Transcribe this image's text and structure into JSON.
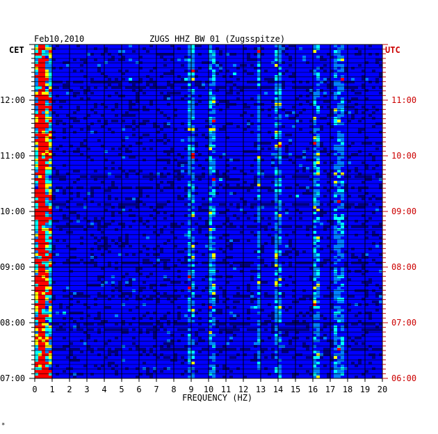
{
  "chart_data": {
    "type": "heatmap",
    "date_label": "Feb10,2010",
    "title": "ZUGS HHZ BW 01 (Zugsspitze)",
    "left_tz_label": "CET",
    "right_tz_label": "UTC",
    "xlabel": "FREQUENCY (HZ)",
    "xlim": [
      0,
      20
    ],
    "x_ticks": [
      "0",
      "1",
      "2",
      "3",
      "4",
      "5",
      "6",
      "7",
      "8",
      "9",
      "10",
      "11",
      "12",
      "13",
      "14",
      "15",
      "16",
      "17",
      "18",
      "19",
      "20"
    ],
    "time_range_cet": [
      "07:00",
      "13:00"
    ],
    "left_ticks": [
      "12:00",
      "11:00",
      "10:00",
      "09:00",
      "08:00",
      "07:00"
    ],
    "right_ticks": [
      "11:00",
      "10:00",
      "09:00",
      "08:00",
      "07:00",
      "06:00"
    ],
    "tick_hours_from_bottom": [
      5,
      4,
      3,
      2,
      1,
      0
    ],
    "spectral_lines_hz": [
      0.4,
      9.0,
      10.2,
      12.9,
      14.0,
      16.2,
      17.5
    ],
    "colormap": [
      "#000080",
      "#0000ff",
      "#0080ff",
      "#00ffff",
      "#ffff00",
      "#ff0000"
    ],
    "grid": true,
    "footnote": "*"
  }
}
